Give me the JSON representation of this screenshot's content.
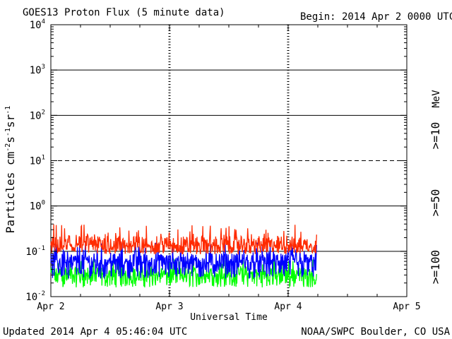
{
  "header": {
    "title": "GOES13 Proton Flux (5 minute data)",
    "begin": "Begin: 2014 Apr 2 0000 UTC"
  },
  "footer": {
    "updated": "Updated 2014 Apr  4 05:46:04 UTC",
    "credit": "NOAA/SWPC Boulder, CO USA"
  },
  "chart_data": {
    "type": "line",
    "title": "GOES13 Proton Flux (5 minute data)",
    "xlabel": "Universal Time",
    "ylabel": "Particles cm-2 s-1 sr-1",
    "yscale": "log",
    "ylim": [
      0.01,
      10000
    ],
    "xlim_days": [
      0,
      3
    ],
    "x_ticks": [
      "Apr 2",
      "Apr 3",
      "Apr 4",
      "Apr 5"
    ],
    "y_ticks": [
      {
        "base": "10",
        "exp": "-2"
      },
      {
        "base": "10",
        "exp": "-1"
      },
      {
        "base": "10",
        "exp": "0"
      },
      {
        "base": "10",
        "exp": "1"
      },
      {
        "base": "10",
        "exp": "2"
      },
      {
        "base": "10",
        "exp": "3"
      },
      {
        "base": "10",
        "exp": "4"
      }
    ],
    "hlines": [
      {
        "value": 10,
        "style": "dashed"
      },
      {
        "value": 1,
        "style": "solid"
      },
      {
        "value": 0.1,
        "style": "solid"
      },
      {
        "value": 100,
        "style": "solid"
      },
      {
        "value": 1000,
        "style": "solid"
      }
    ],
    "grid": false,
    "data_end_day": 2.24,
    "units_label": "MeV",
    "series": [
      {
        "name": ">=10",
        "color": "#ff2a00",
        "typical": 0.13,
        "min": 0.085,
        "max": 0.4
      },
      {
        "name": ">=50",
        "color": "#0000ff",
        "typical": 0.055,
        "min": 0.025,
        "max": 0.16
      },
      {
        "name": ">=100",
        "color": "#00ff00",
        "typical": 0.03,
        "min": 0.016,
        "max": 0.07
      }
    ]
  }
}
